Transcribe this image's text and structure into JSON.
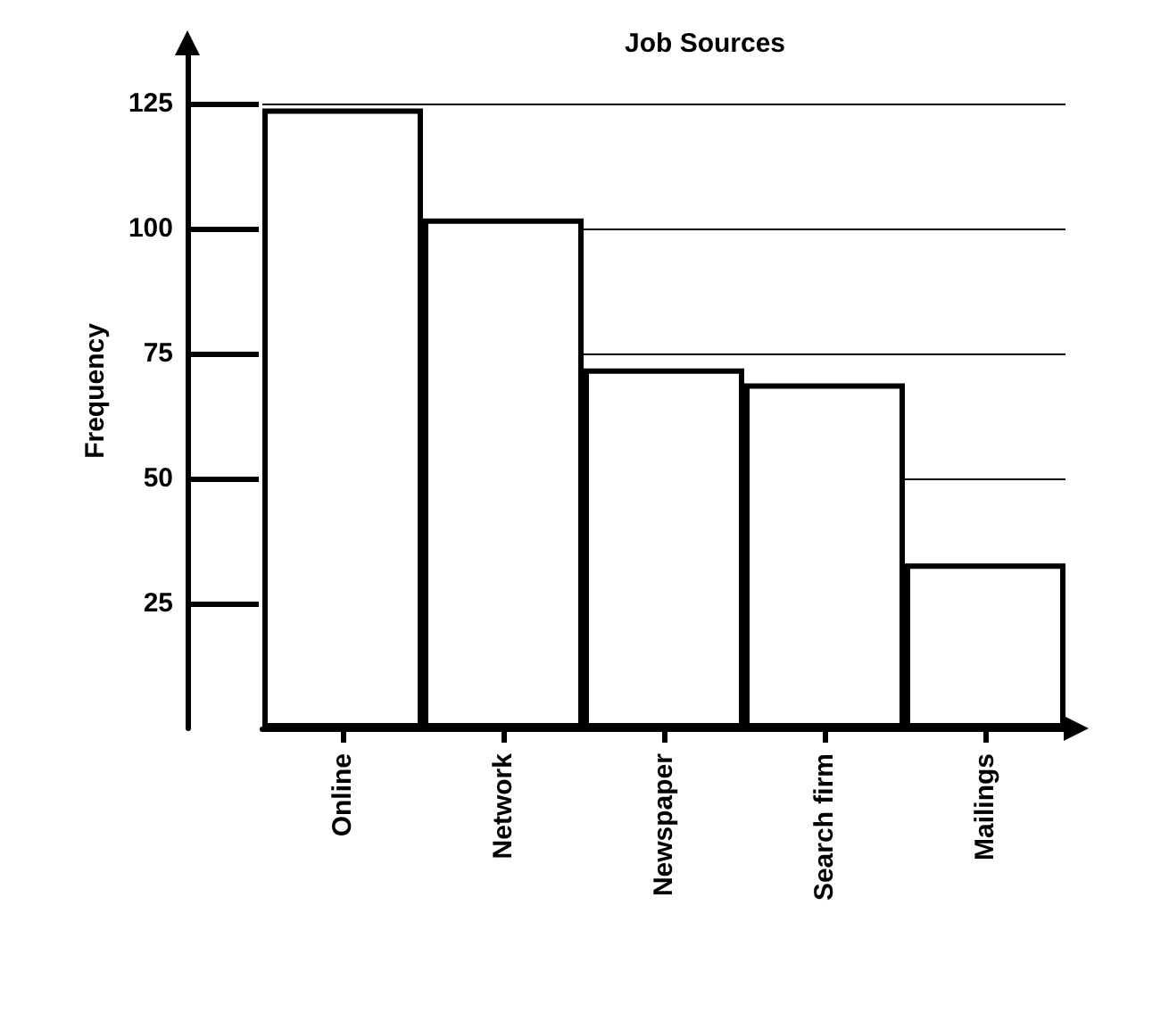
{
  "chart_data": {
    "type": "bar",
    "title": "Job Sources",
    "ylabel": "Frequency",
    "categories": [
      "Online",
      "Network",
      "Newspaper",
      "Search firm",
      "Mailings"
    ],
    "values": [
      124,
      102,
      72,
      69,
      33
    ],
    "color": "#ffffff",
    "ylim": [
      0,
      135
    ],
    "yticks": [
      25,
      50,
      75,
      100,
      125
    ],
    "grid": "y"
  }
}
